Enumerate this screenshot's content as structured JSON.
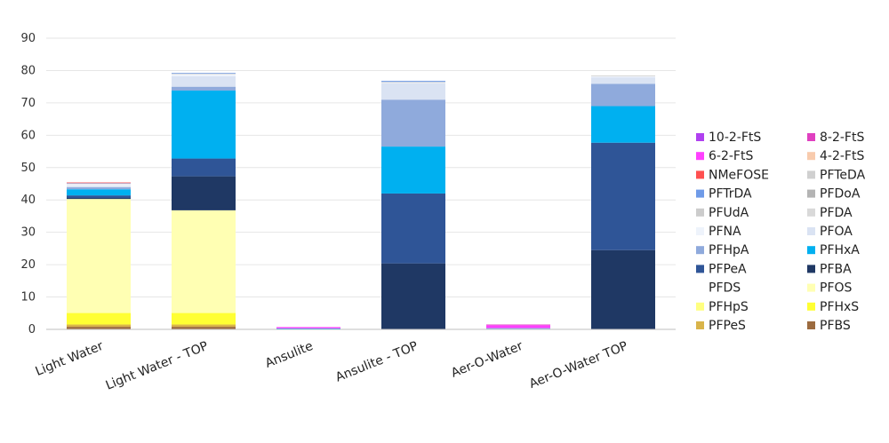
{
  "chart_data": {
    "type": "bar",
    "stacked": true,
    "title": "",
    "xlabel": "",
    "ylabel": "",
    "ylim": [
      0,
      90
    ],
    "yticks": [
      0,
      10,
      20,
      30,
      40,
      50,
      60,
      70,
      80,
      90
    ],
    "grid": true,
    "legend_position": "right",
    "categories": [
      "Light Water",
      "Light Water - TOP",
      "Ansulite",
      "Ansulite - TOP",
      "Aer-O-Water",
      "Aer-O-Water TOP"
    ],
    "series": [
      {
        "name": "PFBS",
        "color": "#9c6b3f",
        "values": [
          0.8,
          0.8,
          0,
          0,
          0,
          0
        ]
      },
      {
        "name": "PFPeS",
        "color": "#d9b44a",
        "values": [
          0.7,
          0.7,
          0,
          0,
          0,
          0
        ]
      },
      {
        "name": "PFHxS",
        "color": "#ffff33",
        "values": [
          3.5,
          3.5,
          0,
          0,
          0,
          0
        ]
      },
      {
        "name": "PFHpS",
        "color": "#ffff80",
        "values": [
          0.3,
          0.3,
          0,
          0,
          0,
          0
        ]
      },
      {
        "name": "PFOS",
        "color": "#ffffb3",
        "values": [
          35,
          31.5,
          0,
          0,
          0,
          0
        ]
      },
      {
        "name": "PFDS",
        "color": "#ffffff",
        "values": [
          0,
          0,
          0,
          0,
          0,
          0
        ]
      },
      {
        "name": "PFBA",
        "color": "#1f3864",
        "values": [
          0.3,
          10.5,
          0,
          20.4,
          0,
          24.5
        ]
      },
      {
        "name": "PFPeA",
        "color": "#2f5597",
        "values": [
          0.8,
          5.5,
          0,
          21.6,
          0,
          33.2
        ]
      },
      {
        "name": "PFHxA",
        "color": "#00b0f0",
        "values": [
          1.9,
          21,
          0.3,
          14.5,
          0.2,
          11.3
        ]
      },
      {
        "name": "PFHpA",
        "color": "#8faadc",
        "values": [
          0.6,
          1.2,
          0,
          14.5,
          0.2,
          6.9
        ]
      },
      {
        "name": "PFOA",
        "color": "#dae3f3",
        "values": [
          0.5,
          3.2,
          0,
          5,
          0,
          2
        ]
      },
      {
        "name": "PFNA",
        "color": "#eef3fb",
        "values": [
          0.5,
          0.6,
          0,
          0.2,
          0,
          0.3
        ]
      },
      {
        "name": "PFDA",
        "color": "#d9d9d9",
        "values": [
          0.2,
          0.3,
          0,
          0.3,
          0,
          0.3
        ]
      },
      {
        "name": "PFUdA",
        "color": "#cccccc",
        "values": [
          0,
          0,
          0,
          0,
          0,
          0
        ]
      },
      {
        "name": "PFDoA",
        "color": "#b4b4b4",
        "values": [
          0,
          0,
          0,
          0,
          0,
          0
        ]
      },
      {
        "name": "PFTrDA",
        "color": "#6f9be8",
        "values": [
          0.1,
          0.2,
          0,
          0.3,
          0,
          0
        ]
      },
      {
        "name": "PFTeDA",
        "color": "#d0d0d0",
        "values": [
          0,
          0,
          0,
          0,
          0,
          0
        ]
      },
      {
        "name": "NMeFOSE",
        "color": "#ff5050",
        "values": [
          0.2,
          0,
          0,
          0,
          0,
          0
        ]
      },
      {
        "name": "4-2-FtS",
        "color": "#f8cbad",
        "values": [
          0,
          0,
          0,
          0,
          0,
          0
        ]
      },
      {
        "name": "6-2-FtS",
        "color": "#ff40ff",
        "values": [
          0,
          0,
          0.4,
          0,
          0.9,
          0
        ]
      },
      {
        "name": "8-2-FtS",
        "color": "#e040c0",
        "values": [
          0,
          0,
          0,
          0,
          0.2,
          0
        ]
      },
      {
        "name": "10-2-FtS",
        "color": "#b040f0",
        "values": [
          0,
          0,
          0,
          0,
          0,
          0
        ]
      }
    ],
    "legend_order": [
      [
        "10-2-FtS",
        "8-2-FtS"
      ],
      [
        "6-2-FtS",
        "4-2-FtS"
      ],
      [
        "NMeFOSE",
        "PFTeDA"
      ],
      [
        "PFTrDA",
        "PFDoA"
      ],
      [
        "PFUdA",
        "PFDA"
      ],
      [
        "PFNA",
        "PFOA"
      ],
      [
        "PFHpA",
        "PFHxA"
      ],
      [
        "PFPeA",
        "PFBA"
      ],
      [
        "PFDS",
        "PFOS"
      ],
      [
        "PFHpS",
        "PFHxS"
      ],
      [
        "PFPeS",
        "PFBS"
      ]
    ]
  }
}
